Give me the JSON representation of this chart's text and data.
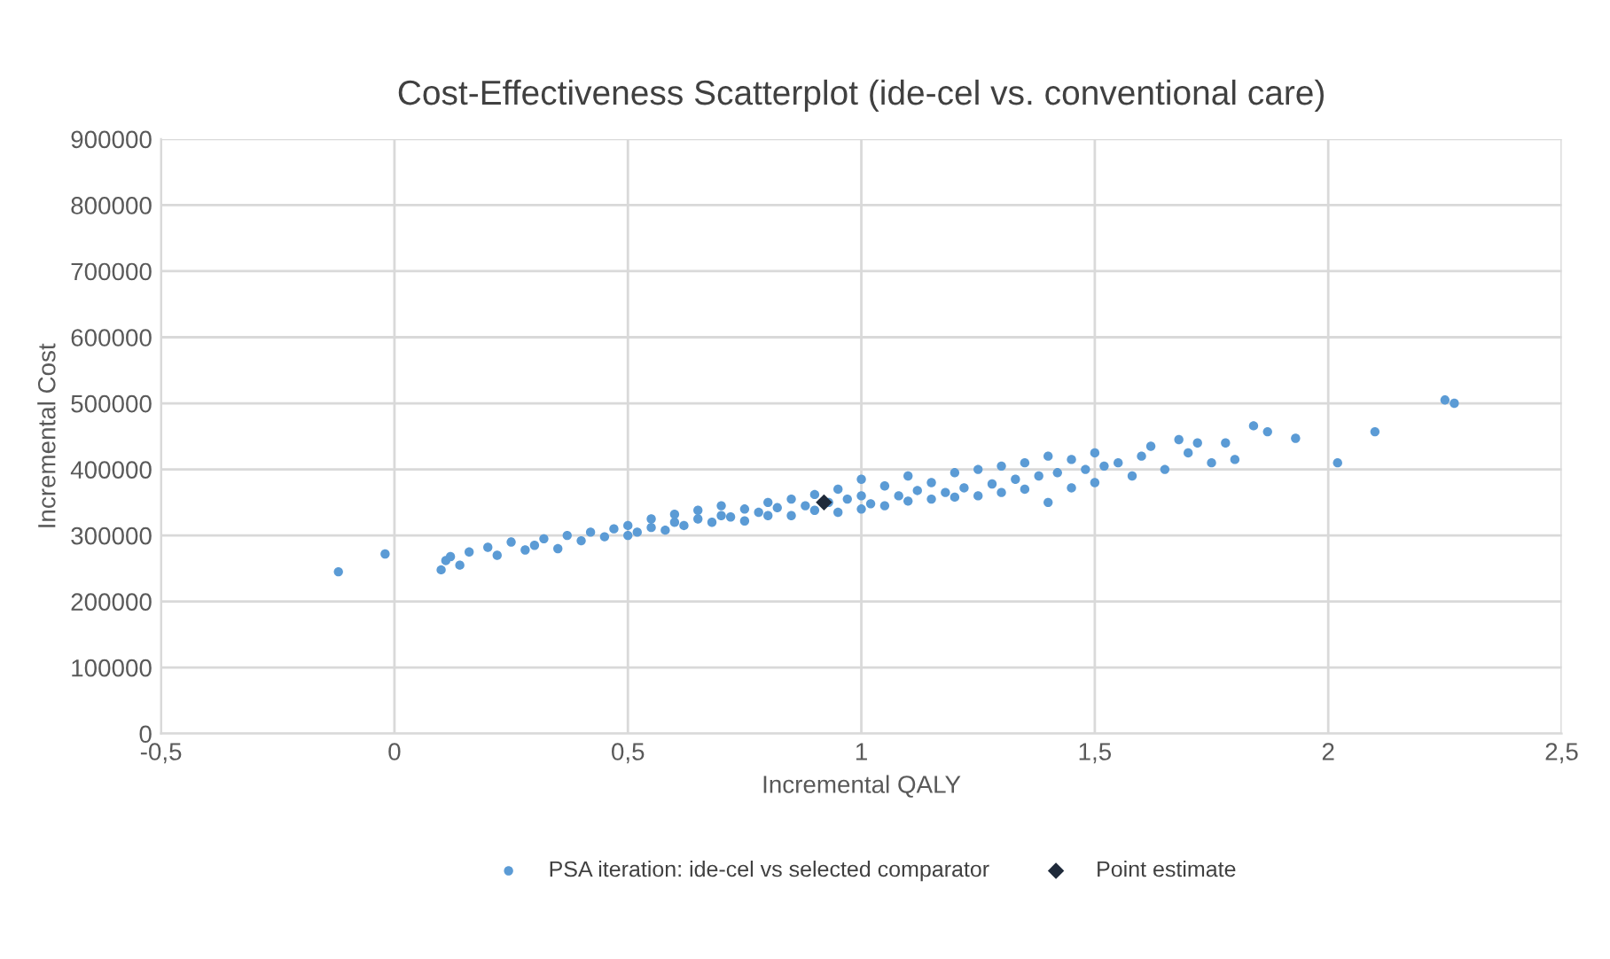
{
  "chart_data": {
    "type": "scatter",
    "title": "Cost-Effectiveness Scatterplot (ide-cel vs. conventional care)",
    "xlabel": "Incremental QALY",
    "ylabel": "Incremental Cost",
    "xlim": [
      -0.5,
      2.5
    ],
    "xticks": [
      {
        "value": -0.5,
        "label": "-0,5"
      },
      0,
      {
        "value": 0.5,
        "label": "0,5"
      },
      1,
      {
        "value": 1.5,
        "label": "1,5"
      },
      2,
      {
        "value": 2.5,
        "label": "2,5"
      }
    ],
    "ylim": [
      0,
      900000
    ],
    "yticks": [
      0,
      100000,
      200000,
      300000,
      400000,
      500000,
      600000,
      700000,
      800000,
      900000
    ],
    "grid": true,
    "legend": "bottom",
    "series": [
      {
        "name": "PSA iteration: ide-cel vs selected comparator",
        "color": "#5b9bd5",
        "marker": "circle",
        "x": [
          -0.12,
          -0.02,
          0.1,
          0.11,
          0.12,
          0.14,
          0.16,
          0.2,
          0.22,
          0.25,
          0.28,
          0.3,
          0.32,
          0.35,
          0.37,
          0.4,
          0.42,
          0.45,
          0.47,
          0.5,
          0.5,
          0.52,
          0.55,
          0.55,
          0.58,
          0.6,
          0.6,
          0.62,
          0.65,
          0.65,
          0.68,
          0.7,
          0.7,
          0.72,
          0.75,
          0.75,
          0.78,
          0.8,
          0.8,
          0.82,
          0.85,
          0.85,
          0.88,
          0.9,
          0.9,
          0.93,
          0.95,
          0.95,
          0.97,
          1.0,
          1.0,
          1.0,
          1.02,
          1.05,
          1.05,
          1.08,
          1.1,
          1.1,
          1.12,
          1.15,
          1.15,
          1.18,
          1.2,
          1.2,
          1.22,
          1.25,
          1.25,
          1.28,
          1.3,
          1.3,
          1.33,
          1.35,
          1.35,
          1.38,
          1.4,
          1.4,
          1.42,
          1.45,
          1.45,
          1.48,
          1.5,
          1.5,
          1.52,
          1.55,
          1.58,
          1.6,
          1.62,
          1.65,
          1.68,
          1.7,
          1.72,
          1.75,
          1.78,
          1.8,
          1.84,
          1.87,
          1.93,
          2.02,
          2.1,
          2.25,
          2.27
        ],
        "values": [
          245000,
          272000,
          248000,
          262000,
          268000,
          255000,
          275000,
          282000,
          270000,
          290000,
          278000,
          285000,
          295000,
          280000,
          300000,
          292000,
          305000,
          298000,
          310000,
          300000,
          315000,
          305000,
          312000,
          325000,
          308000,
          320000,
          332000,
          315000,
          325000,
          338000,
          320000,
          330000,
          345000,
          328000,
          322000,
          340000,
          335000,
          330000,
          350000,
          342000,
          330000,
          355000,
          345000,
          338000,
          362000,
          350000,
          335000,
          370000,
          355000,
          340000,
          360000,
          385000,
          348000,
          345000,
          375000,
          360000,
          352000,
          390000,
          368000,
          355000,
          380000,
          365000,
          358000,
          395000,
          372000,
          360000,
          400000,
          378000,
          365000,
          405000,
          385000,
          370000,
          410000,
          390000,
          350000,
          420000,
          395000,
          372000,
          415000,
          400000,
          380000,
          425000,
          405000,
          410000,
          390000,
          420000,
          435000,
          400000,
          445000,
          425000,
          440000,
          410000,
          440000,
          415000,
          466000,
          457000,
          447000,
          410000,
          457000,
          505000,
          500000
        ]
      },
      {
        "name": "Point estimate",
        "color": "#1f2a3a",
        "marker": "diamond",
        "x": [
          0.92
        ],
        "values": [
          350000
        ]
      }
    ]
  }
}
